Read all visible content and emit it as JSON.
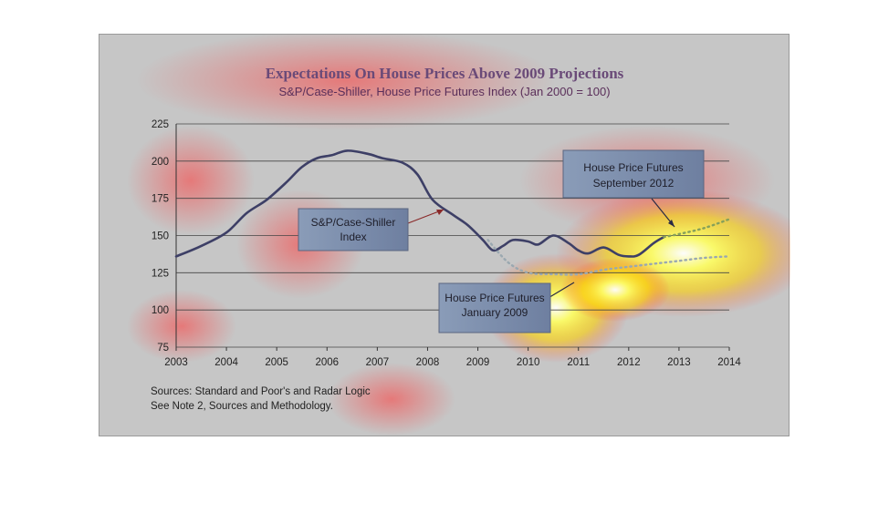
{
  "chart_data": {
    "type": "line",
    "title": "Expectations On House Prices Above 2009 Projections",
    "subtitle": "S&P/Case-Shiller, House Price Futures Index (Jan 2000 = 100)",
    "xlim": [
      2003,
      2014
    ],
    "ylim": [
      75,
      225
    ],
    "x_ticks": [
      "2003",
      "2004",
      "2005",
      "2006",
      "2007",
      "2008",
      "2009",
      "2010",
      "2011",
      "2012",
      "2013",
      "2014"
    ],
    "y_ticks": [
      "75",
      "100",
      "125",
      "150",
      "175",
      "200",
      "225"
    ],
    "grid": true,
    "series": [
      {
        "name": "S&P/Case-Shiller Index",
        "style": "solid",
        "color": "#3d3f66",
        "points": [
          [
            2003.0,
            136
          ],
          [
            2003.5,
            143
          ],
          [
            2004.0,
            152
          ],
          [
            2004.4,
            165
          ],
          [
            2004.8,
            174
          ],
          [
            2005.2,
            186
          ],
          [
            2005.5,
            196
          ],
          [
            2005.8,
            202
          ],
          [
            2006.1,
            204
          ],
          [
            2006.4,
            207
          ],
          [
            2006.8,
            205
          ],
          [
            2007.1,
            202
          ],
          [
            2007.5,
            199
          ],
          [
            2007.8,
            191
          ],
          [
            2008.1,
            174
          ],
          [
            2008.5,
            164
          ],
          [
            2008.8,
            157
          ],
          [
            2009.1,
            147
          ],
          [
            2009.3,
            140
          ],
          [
            2009.5,
            143
          ],
          [
            2009.7,
            147
          ],
          [
            2010.0,
            146
          ],
          [
            2010.2,
            144
          ],
          [
            2010.5,
            150
          ],
          [
            2010.8,
            145
          ],
          [
            2011.0,
            140
          ],
          [
            2011.2,
            138
          ],
          [
            2011.5,
            142
          ],
          [
            2011.8,
            137
          ],
          [
            2012.0,
            136
          ],
          [
            2012.2,
            137
          ],
          [
            2012.5,
            145
          ],
          [
            2012.7,
            149
          ]
        ]
      },
      {
        "name": "House Price Futures September 2012",
        "style": "dotted",
        "color": "#86a05a",
        "points": [
          [
            2012.7,
            149
          ],
          [
            2013.0,
            151
          ],
          [
            2013.5,
            155
          ],
          [
            2014.0,
            161
          ]
        ]
      },
      {
        "name": "House Price Futures January 2009",
        "style": "dotted",
        "color": "#9aa8b0",
        "points": [
          [
            2009.2,
            147
          ],
          [
            2009.6,
            132
          ],
          [
            2010.0,
            125
          ],
          [
            2010.5,
            124
          ],
          [
            2011.0,
            124
          ],
          [
            2011.5,
            127
          ],
          [
            2012.0,
            129
          ],
          [
            2012.5,
            131
          ],
          [
            2013.0,
            133
          ],
          [
            2013.5,
            135
          ],
          [
            2014.0,
            136
          ]
        ]
      }
    ],
    "annotations": [
      {
        "line1": "S&P/Case-Shiller",
        "line2": "Index"
      },
      {
        "line1": "House Price Futures",
        "line2": "September 2012"
      },
      {
        "line1": "House Price Futures",
        "line2": "January 2009"
      }
    ],
    "sources": [
      "Sources:  Standard and Poor's and Radar Logic",
      "See Note 2, Sources and Methodology."
    ]
  }
}
